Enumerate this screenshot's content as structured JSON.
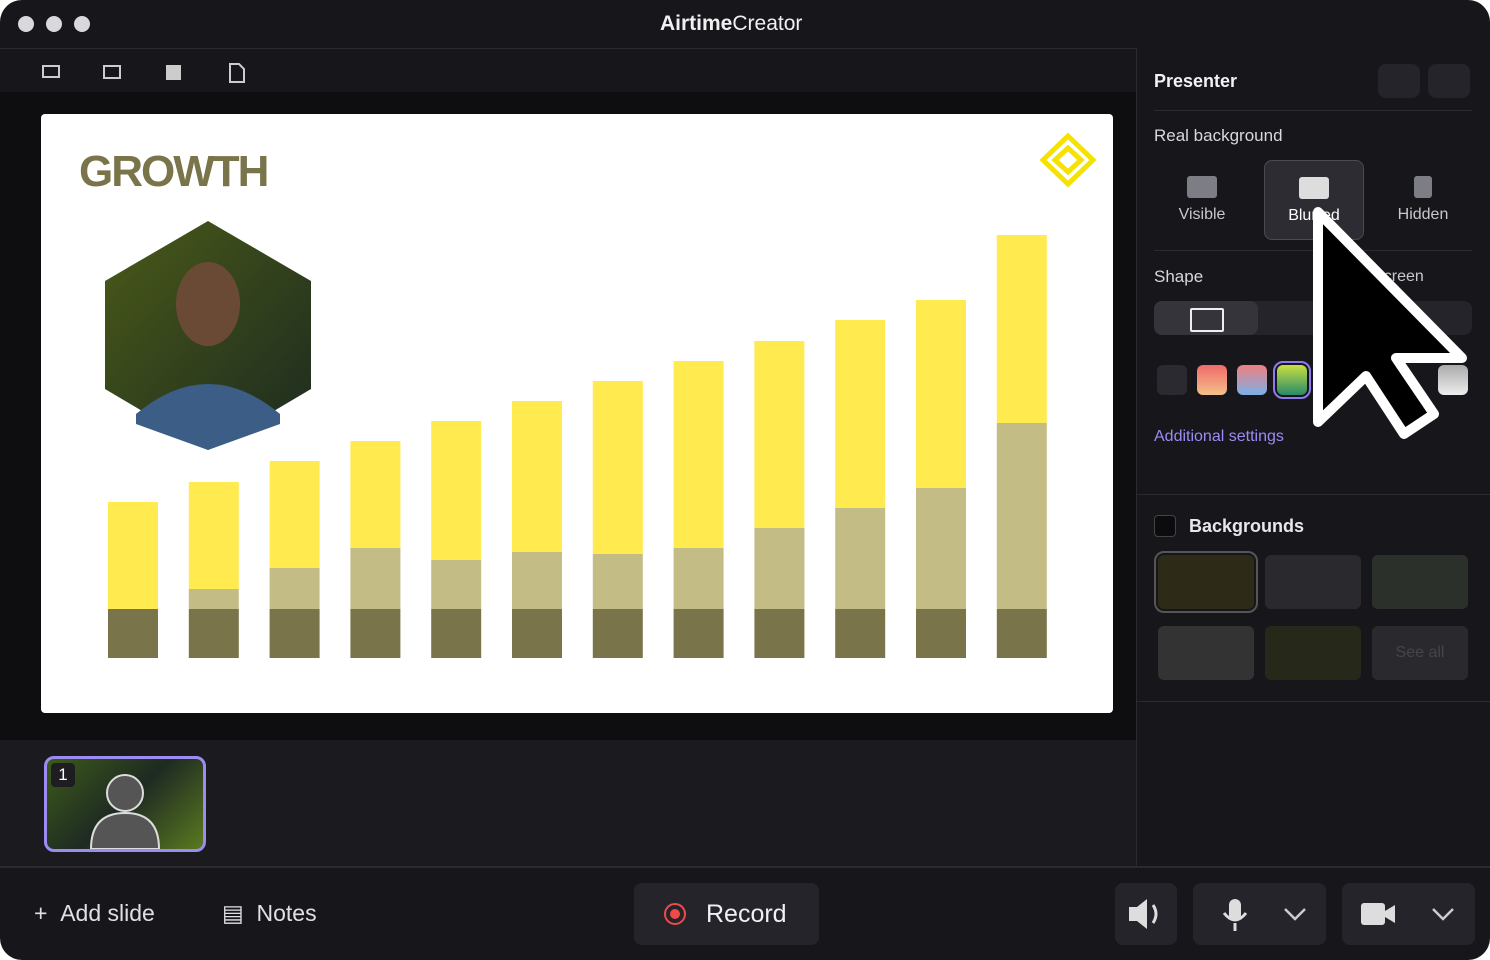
{
  "window": {
    "brand": "Airtime",
    "product": "Creator"
  },
  "slide": {
    "title": "GROWTH",
    "chart": {
      "type": "bar",
      "stacked": true,
      "ylim": [
        0,
        45
      ],
      "series": [
        {
          "color": "#7a744a",
          "values": [
            4.9,
            4.9,
            4.9,
            4.9,
            4.9,
            4.9,
            4.9,
            4.9,
            4.9,
            4.9,
            4.9,
            4.9
          ]
        },
        {
          "color": "#c3bd85",
          "values": [
            0,
            2,
            4.1,
            6.1,
            4.9,
            5.7,
            5.5,
            6.1,
            8.1,
            10.1,
            12.1,
            18.6
          ]
        },
        {
          "color": "#ffea4f",
          "values": [
            10.7,
            10.7,
            10.7,
            10.7,
            13.9,
            15.1,
            17.3,
            18.7,
            18.7,
            18.8,
            18.8,
            18.8
          ]
        }
      ]
    }
  },
  "thumbnails": [
    {
      "number": 1
    }
  ],
  "panel": {
    "title": "Presenter",
    "real_background": "Real background",
    "background_options": [
      "Visible",
      "Blurred",
      "Hidden"
    ],
    "shape": "Shape",
    "fullscreen": "Fullscreen",
    "additional_settings": "Additional settings",
    "backgrounds": "Backgrounds",
    "see_all": "See all"
  },
  "toolbar": {
    "add_slide": "Add slide",
    "notes": "Notes",
    "record": "Record"
  }
}
